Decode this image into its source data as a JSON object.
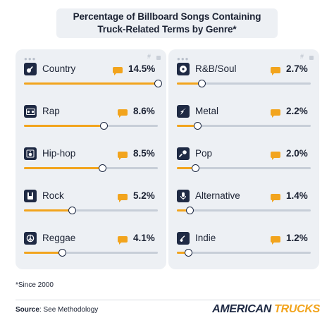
{
  "title": {
    "line1": "Percentage of Billboard Songs Containing",
    "line2": "Truck-Related Terms by Genre*"
  },
  "footnote": "*Since 2000",
  "source": {
    "label": "Source",
    "text": ": See Methodology"
  },
  "logo": {
    "part1": "AMERICAN",
    "part2": "TRUCKS"
  },
  "colors": {
    "accent": "#f2a41d",
    "navy": "#1f2a44",
    "panel": "#edf0f4",
    "track": "#c7ced8"
  },
  "chart_data": {
    "type": "bar",
    "orientation": "horizontal",
    "title": "Percentage of Billboard Songs Containing Truck-Related Terms by Genre*",
    "unit": "%",
    "xlim": [
      0,
      14.5
    ],
    "columns": [
      {
        "categories": [
          "Country",
          "Rap",
          "Hip-hop",
          "Rock",
          "Reggae"
        ],
        "values": [
          14.5,
          8.6,
          8.5,
          5.2,
          4.1
        ],
        "labels": [
          "14.5%",
          "8.6%",
          "8.5%",
          "5.2%",
          "4.1%"
        ],
        "icons": [
          "guitar-icon",
          "boombox-icon",
          "speaker-icon",
          "rock-hand-icon",
          "peace-icon"
        ]
      },
      {
        "categories": [
          "R&B/Soul",
          "Metal",
          "Pop",
          "Alternative",
          "Indie"
        ],
        "values": [
          2.7,
          2.2,
          2.0,
          1.4,
          1.2
        ],
        "labels": [
          "2.7%",
          "2.2%",
          "2.0%",
          "1.4%",
          "1.2%"
        ],
        "icons": [
          "vinyl-icon",
          "lightning-guitar-icon",
          "microphone-icon",
          "studio-mic-icon",
          "electric-guitar-icon"
        ]
      }
    ]
  }
}
